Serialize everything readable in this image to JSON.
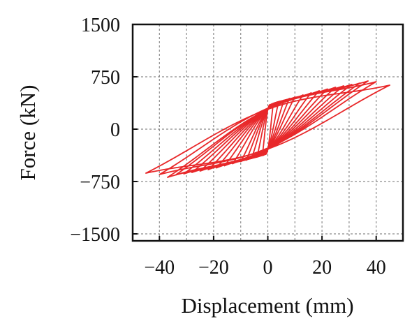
{
  "chart_data": {
    "type": "line",
    "title": "",
    "xlabel": "Displacement (mm)",
    "ylabel": "Force (kN)",
    "xlim": [
      -50,
      50
    ],
    "ylim": [
      -1500,
      1500
    ],
    "xticks": [
      -40,
      -20,
      0,
      20,
      40
    ],
    "xtick_labels": [
      "−40",
      "−20",
      "0",
      "20",
      "40"
    ],
    "yticks": [
      1500,
      750,
      0,
      -750,
      -1500
    ],
    "ytick_labels": [
      "1500",
      "750",
      "0",
      "−750",
      "−1500"
    ],
    "grid": true,
    "legend": "none",
    "line_color": "#e8282a",
    "series": [
      {
        "amplitude_mm": 2,
        "peak_kN": 360,
        "min_kN": -370
      },
      {
        "amplitude_mm": 4,
        "peak_kN": 390,
        "min_kN": -400
      },
      {
        "amplitude_mm": 6,
        "peak_kN": 415,
        "min_kN": -420
      },
      {
        "amplitude_mm": 8,
        "peak_kN": 440,
        "min_kN": -445
      },
      {
        "amplitude_mm": 10,
        "peak_kN": 460,
        "min_kN": -465
      },
      {
        "amplitude_mm": 13,
        "peak_kN": 490,
        "min_kN": -495
      },
      {
        "amplitude_mm": 16,
        "peak_kN": 520,
        "min_kN": -525
      },
      {
        "amplitude_mm": 19,
        "peak_kN": 550,
        "min_kN": -555
      },
      {
        "amplitude_mm": 22,
        "peak_kN": 575,
        "min_kN": -580
      },
      {
        "amplitude_mm": 25,
        "peak_kN": 600,
        "min_kN": -600
      },
      {
        "amplitude_mm": 28,
        "peak_kN": 620,
        "min_kN": -620
      },
      {
        "amplitude_mm": 31,
        "peak_kN": 640,
        "min_kN": -640
      },
      {
        "amplitude_mm": 34,
        "peak_kN": 660,
        "min_kN": -655
      },
      {
        "amplitude_mm": 37,
        "peak_kN": 690,
        "min_kN": -690
      },
      {
        "amplitude_mm": 40,
        "peak_kN": 680,
        "min_kN": -650
      },
      {
        "amplitude_mm": 45,
        "peak_kN": 630,
        "min_kN": -630
      }
    ]
  }
}
